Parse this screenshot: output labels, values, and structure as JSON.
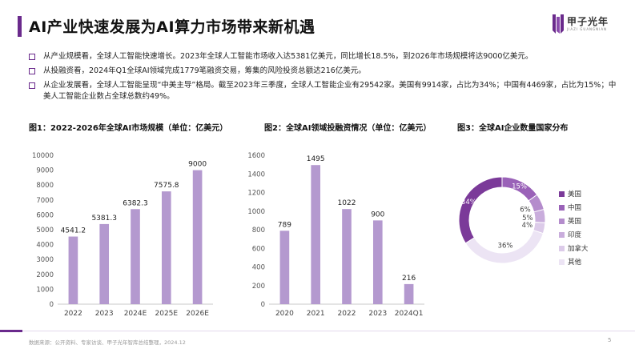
{
  "page": {
    "title": "AI产业快速发展为AI算力市场带来新机遇",
    "logo_text": "甲子光年",
    "logo_sub": "JIAZI GUANGNIAN",
    "bullets": [
      "从产业规模看，全球人工智能快速增长。2023年全球人工智能市场收入达5381亿美元，同比增长18.5%，到2026年市场规模将达9000亿美元。",
      "从投融资看，2024年Q1全球AI领域完成1779笔融资交易，筹集的风险投资总额达216亿美元。",
      "从企业发展看，全球人工智能呈现“中美主导”格局。截至2023年三季度，全球人工智能企业有29542家。美国有9914家，占比为34%；中国有4469家，占比为15%；中美人工智能企业数占全球总数约49%。"
    ],
    "source": "数据来源：公开资料、专家访谈、甲子光年智库总结整理，2024.12",
    "page_number": "5",
    "accent_color": "#6a2a8c"
  },
  "chart_data": [
    {
      "type": "bar",
      "title": "图1：2022-2026年全球AI市场规模（单位：亿美元）",
      "categories": [
        "2022",
        "2023",
        "2024E",
        "2025E",
        "2026E"
      ],
      "values": [
        4541.2,
        5381.3,
        6382.3,
        7575.8,
        9000
      ],
      "value_labels": [
        "4541.2",
        "5381.3",
        "6382.3",
        "7575.8",
        "9000"
      ],
      "ylim": [
        0,
        10000
      ],
      "yticks": [
        "0",
        "1000",
        "2000",
        "3000",
        "4000",
        "5000",
        "6000",
        "7000",
        "8000",
        "9000",
        "10000"
      ],
      "color": "#b499cf",
      "grid": false
    },
    {
      "type": "bar",
      "title": "图2：全球AI领域投融资情况（单位：亿美元）",
      "categories": [
        "2020",
        "2021",
        "2022",
        "2023",
        "2024Q1"
      ],
      "values": [
        789,
        1495,
        1022,
        900,
        216
      ],
      "value_labels": [
        "789",
        "1495",
        "1022",
        "900",
        "216"
      ],
      "ylim": [
        0,
        1600
      ],
      "yticks": [
        "0",
        "200",
        "400",
        "600",
        "800",
        "1000",
        "1200",
        "1400",
        "1600"
      ],
      "color": "#b499cf",
      "grid": false
    },
    {
      "type": "pie",
      "subtype": "donut",
      "title": "图3：全球AI企业数量国家分布",
      "categories": [
        "美国",
        "中国",
        "英国",
        "印度",
        "加拿大",
        "其他"
      ],
      "values": [
        34,
        15,
        6,
        5,
        4,
        36
      ],
      "value_labels": [
        "34%",
        "15%",
        "6%",
        "5%",
        "4%",
        "36%"
      ],
      "colors": [
        "#7b3a99",
        "#9a62b8",
        "#b48ccc",
        "#c9addc",
        "#dccbe9",
        "#ece4f4"
      ],
      "legend": "right"
    }
  ]
}
